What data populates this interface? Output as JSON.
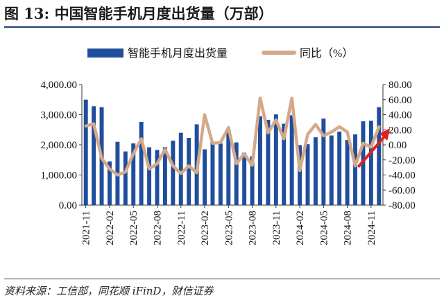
{
  "figure": {
    "title": "图 13:  中国智能手机月度出货量（万部）",
    "source": "资料来源：工信部，同花顺 iFinD，财信证券"
  },
  "chart_data": {
    "type": "bar+line",
    "title": "",
    "categories": [
      "2021-11",
      "2021-12",
      "2022-01",
      "2022-02",
      "2022-03",
      "2022-04",
      "2022-05",
      "2022-06",
      "2022-07",
      "2022-08",
      "2022-09",
      "2022-10",
      "2022-11",
      "2022-12",
      "2023-01",
      "2023-02",
      "2023-03",
      "2023-04",
      "2023-05",
      "2023-06",
      "2023-07",
      "2023-08",
      "2023-09",
      "2023-10",
      "2023-11",
      "2023-12",
      "2024-01",
      "2024-02",
      "2024-03",
      "2024-04",
      "2024-05",
      "2024-06",
      "2024-07",
      "2024-08",
      "2024-09",
      "2024-10",
      "2024-11",
      "2024-12"
    ],
    "tick_labels": [
      "2021-11",
      "2022-02",
      "2022-05",
      "2022-08",
      "2022-11",
      "2023-02",
      "2023-05",
      "2023-08",
      "2023-11",
      "2024-02",
      "2024-05",
      "2024-08",
      "2024-11"
    ],
    "series": [
      {
        "name": "智能手机月度出货量",
        "axis": "left",
        "type": "bar",
        "color": "#1f4e9c",
        "values": [
          3500,
          3280,
          3250,
          1450,
          2100,
          1780,
          2050,
          2760,
          1920,
          1830,
          1920,
          2140,
          2400,
          2230,
          2680,
          1850,
          2100,
          2050,
          2520,
          2080,
          1740,
          1620,
          2950,
          2830,
          3010,
          2700,
          2980,
          1990,
          2020,
          2250,
          2870,
          2310,
          2440,
          2160,
          2350,
          2780,
          2800,
          3250
        ]
      },
      {
        "name": "同比（%）",
        "axis": "right",
        "type": "line",
        "color": "#d4a98a",
        "values": [
          25,
          28,
          -18,
          -32,
          -40,
          -36,
          -12,
          8,
          -32,
          -25,
          -6,
          -28,
          -38,
          -28,
          -37,
          40,
          2,
          3,
          23,
          -25,
          -12,
          -27,
          62,
          16,
          33,
          8,
          62,
          -34,
          14,
          27,
          12,
          17,
          24,
          17,
          -28,
          2,
          -3,
          24
        ]
      }
    ],
    "y_left": {
      "min": 0,
      "max": 4000,
      "ticks": [
        "0.00",
        "1,000.00",
        "2,000.00",
        "3,000.00",
        "4,000.00"
      ]
    },
    "y_right": {
      "min": -80,
      "max": 80,
      "ticks": [
        "-80.00",
        "-60.00",
        "-40.00",
        "-20.00",
        "0.00",
        "20.00",
        "40.00",
        "60.00",
        "80.00"
      ]
    },
    "legend_placement": "top",
    "grid": false,
    "annotation": "red arrow pointing to latest year-over-year value"
  }
}
